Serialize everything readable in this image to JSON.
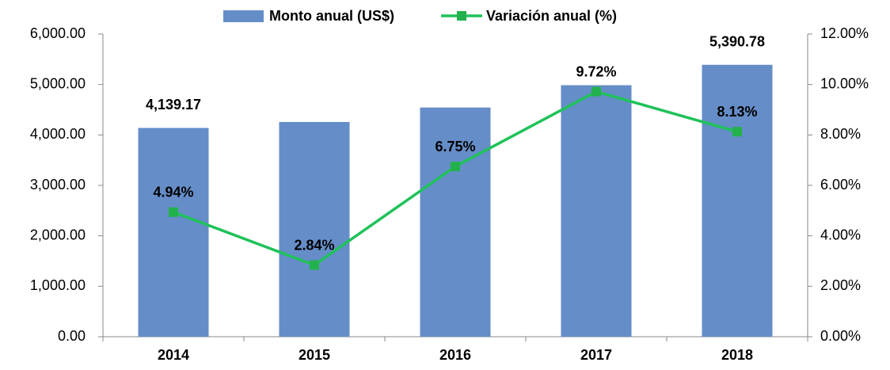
{
  "chart_data": {
    "type": "bar",
    "categories": [
      "2014",
      "2015",
      "2016",
      "2017",
      "2018"
    ],
    "series": [
      {
        "name": "Monto anual (US$)",
        "type": "bar",
        "color": "#658dc8",
        "values": [
          4139.17,
          4257,
          4544,
          4986,
          5390.78
        ],
        "value_labels": [
          "4,139.17",
          null,
          null,
          null,
          "5,390.78"
        ]
      },
      {
        "name": "Variación anual (%)",
        "type": "line",
        "axis": "y2",
        "color": "#1fc25a",
        "values": [
          4.94,
          2.84,
          6.75,
          9.72,
          8.13
        ],
        "value_labels": [
          "4.94%",
          "2.84%",
          "6.75%",
          "9.72%",
          "8.13%"
        ]
      }
    ],
    "ylim": [
      0,
      6000
    ],
    "yticks": [
      {
        "value": 0,
        "label": "0.00"
      },
      {
        "value": 1000,
        "label": "1,000.00"
      },
      {
        "value": 2000,
        "label": "2,000.00"
      },
      {
        "value": 3000,
        "label": "3,000.00"
      },
      {
        "value": 4000,
        "label": "4,000.00"
      },
      {
        "value": 5000,
        "label": "5,000.00"
      },
      {
        "value": 6000,
        "label": "6,000.00"
      }
    ],
    "y2lim": [
      0,
      12
    ],
    "y2ticks": [
      {
        "value": 0,
        "label": "0.00%"
      },
      {
        "value": 2,
        "label": "2.00%"
      },
      {
        "value": 4,
        "label": "4.00%"
      },
      {
        "value": 6,
        "label": "6.00%"
      },
      {
        "value": 8,
        "label": "8.00%"
      },
      {
        "value": 10,
        "label": "10.00%"
      },
      {
        "value": 12,
        "label": "12.00%"
      }
    ],
    "legend": "top",
    "grid": false
  }
}
